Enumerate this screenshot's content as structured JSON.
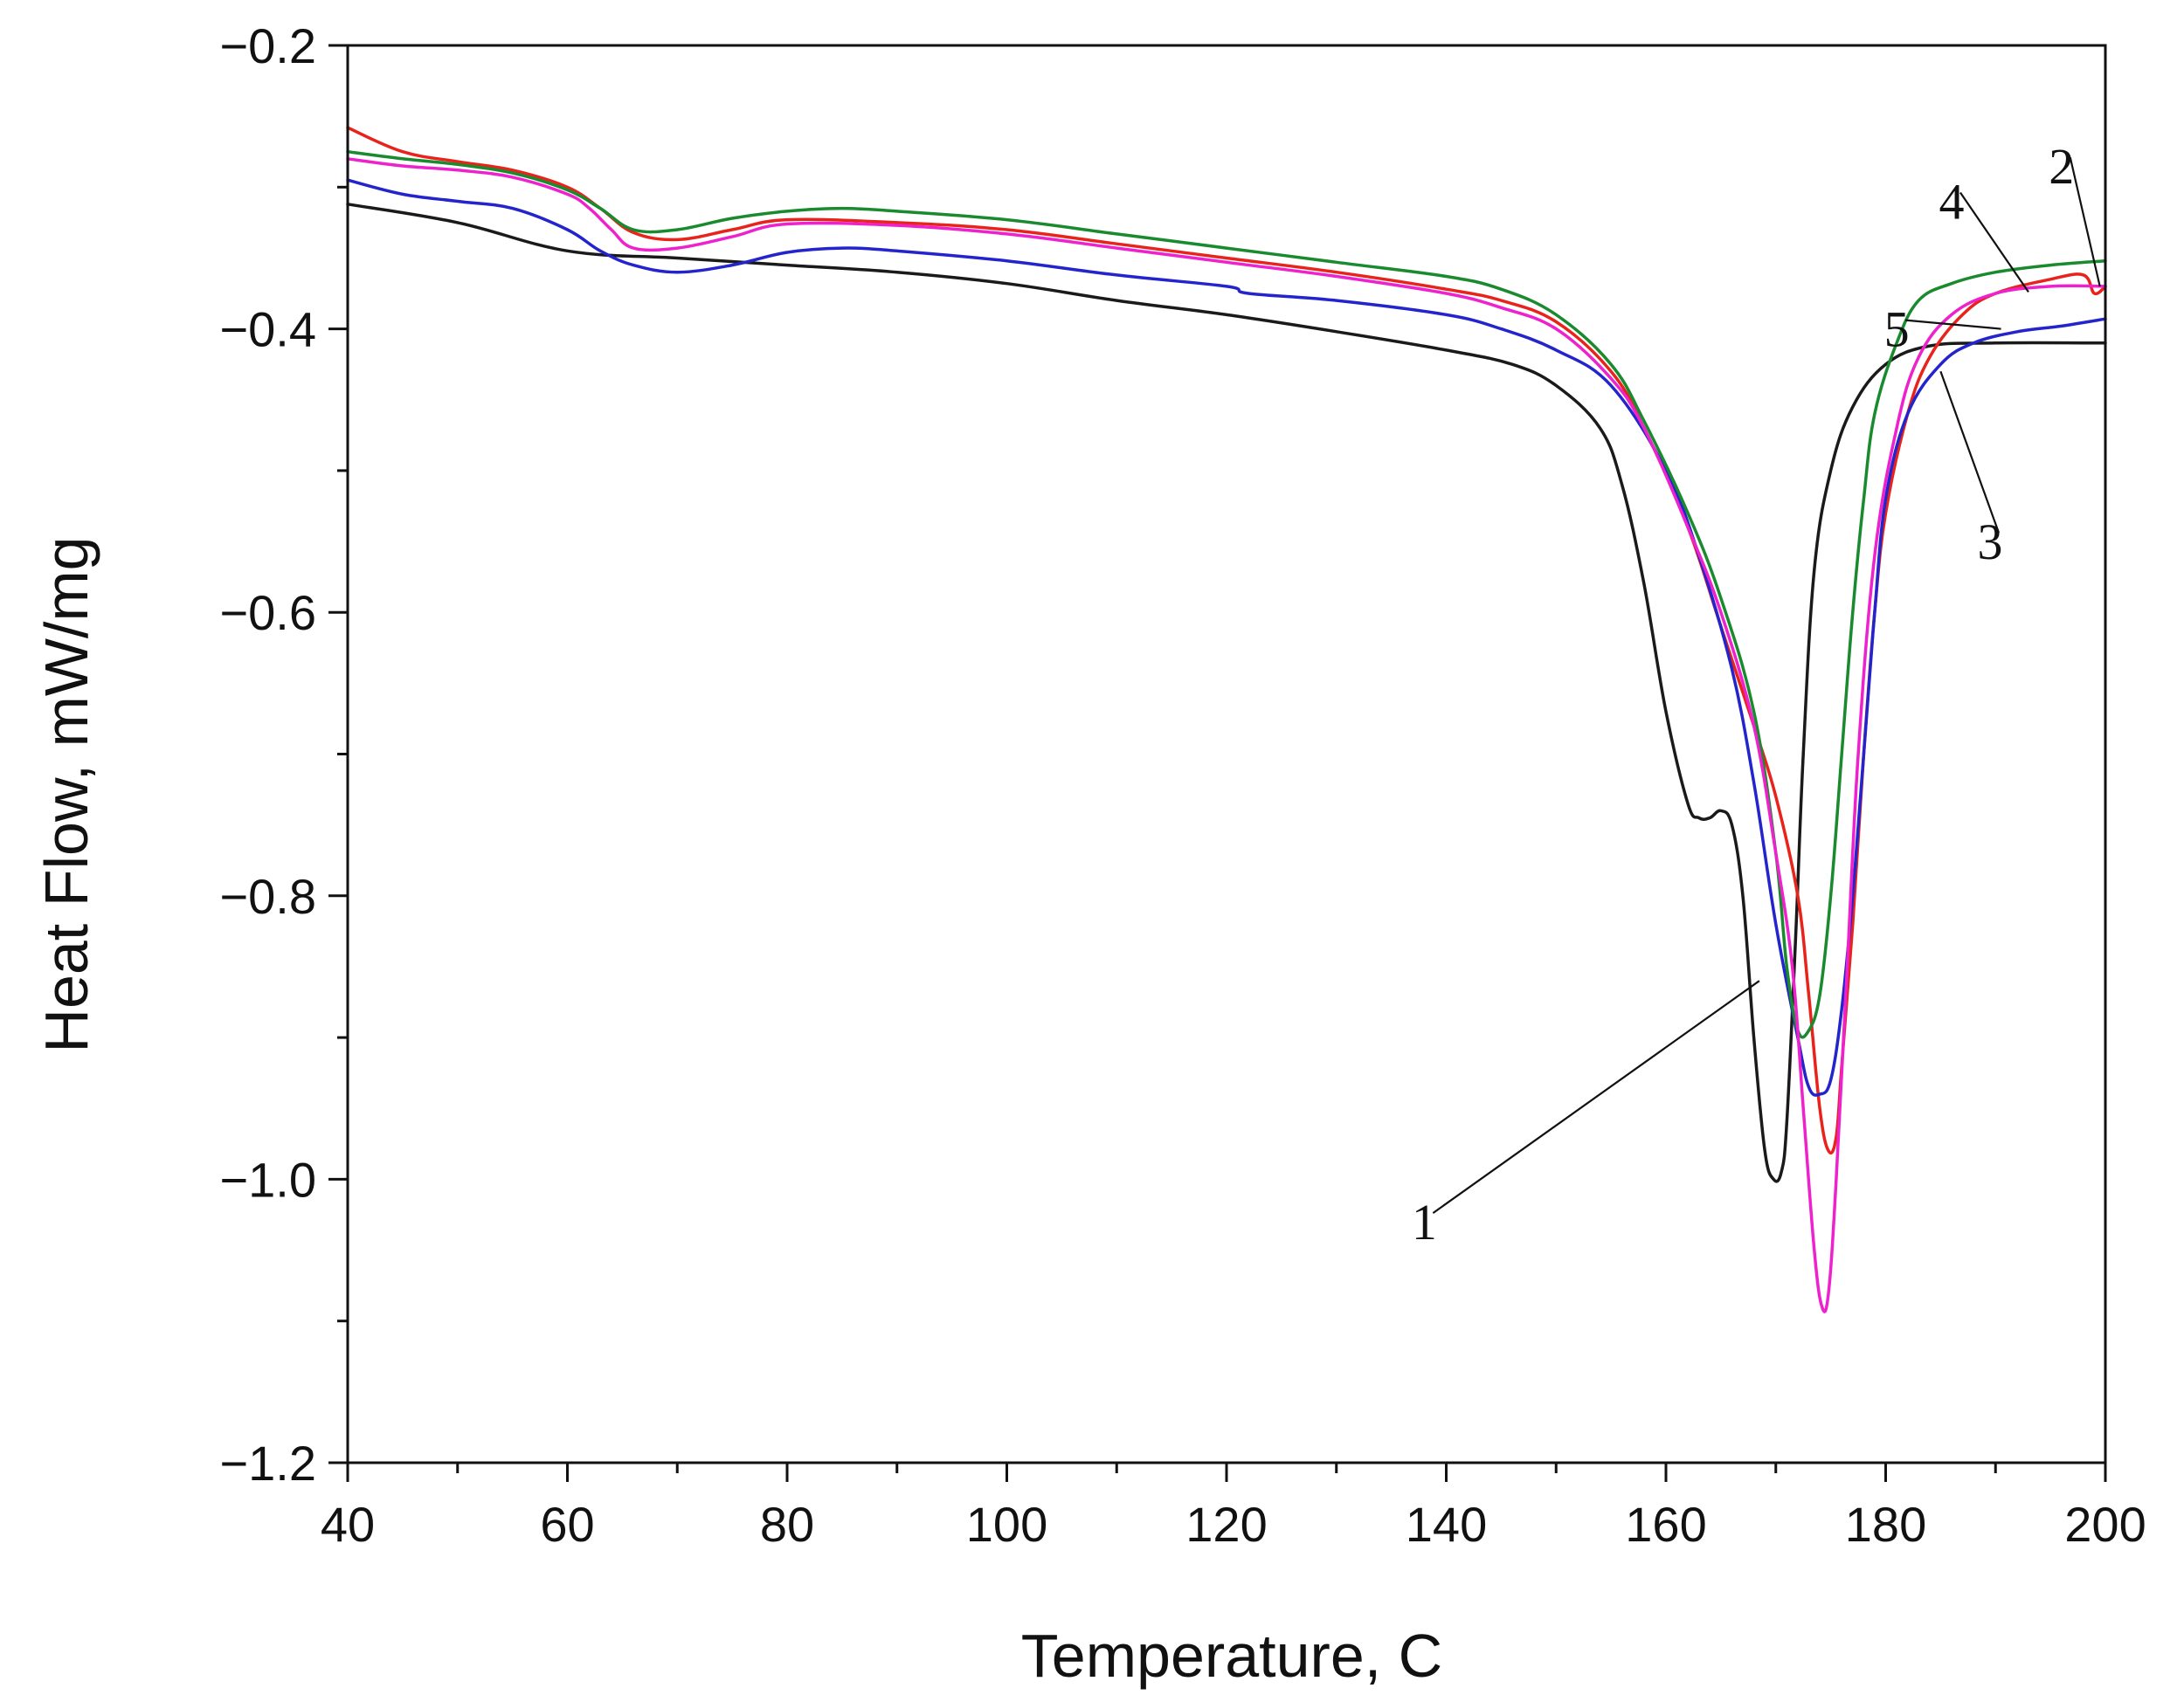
{
  "chart_data": {
    "type": "line",
    "title": "",
    "xlabel": "Temperature, C",
    "ylabel": "Heat Flow, mW/mg",
    "xlim": [
      40,
      200
    ],
    "ylim": [
      -1.2,
      -0.2
    ],
    "xticks": [
      40,
      60,
      80,
      100,
      120,
      140,
      160,
      180,
      200
    ],
    "yticks": [
      -1.2,
      -1.0,
      -0.8,
      -0.6,
      -0.4,
      -0.2
    ],
    "xtick_labels": [
      "40",
      "60",
      "80",
      "100",
      "120",
      "140",
      "160",
      "180",
      "200"
    ],
    "ytick_labels": [
      "−1.2",
      "−1.0",
      "−0.8",
      "−0.6",
      "−0.4",
      "−0.2"
    ],
    "grid": false,
    "series": [
      {
        "name": "1",
        "color": "#1a1a1a",
        "points": [
          [
            40,
            -0.312
          ],
          [
            50,
            -0.325
          ],
          [
            60,
            -0.345
          ],
          [
            70,
            -0.35
          ],
          [
            80,
            -0.355
          ],
          [
            90,
            -0.36
          ],
          [
            100,
            -0.368
          ],
          [
            110,
            -0.38
          ],
          [
            120,
            -0.39
          ],
          [
            130,
            -0.402
          ],
          [
            140,
            -0.415
          ],
          [
            146,
            -0.425
          ],
          [
            150,
            -0.44
          ],
          [
            154,
            -0.47
          ],
          [
            156,
            -0.51
          ],
          [
            158,
            -0.58
          ],
          [
            160,
            -0.67
          ],
          [
            162,
            -0.735
          ],
          [
            163,
            -0.745
          ],
          [
            164,
            -0.745
          ],
          [
            165,
            -0.74
          ],
          [
            166,
            -0.75
          ],
          [
            167,
            -0.8
          ],
          [
            168,
            -0.9
          ],
          [
            169,
            -0.98
          ],
          [
            169.8,
            -1.0
          ],
          [
            170.5,
            -0.995
          ],
          [
            171,
            -0.96
          ],
          [
            171.8,
            -0.83
          ],
          [
            172.5,
            -0.7
          ],
          [
            173.5,
            -0.57
          ],
          [
            175,
            -0.5
          ],
          [
            177,
            -0.455
          ],
          [
            180,
            -0.425
          ],
          [
            184,
            -0.412
          ],
          [
            190,
            -0.41
          ],
          [
            200,
            -0.41
          ]
        ]
      },
      {
        "name": "2",
        "color": "#e8231c",
        "points": [
          [
            40,
            -0.258
          ],
          [
            45,
            -0.275
          ],
          [
            50,
            -0.282
          ],
          [
            55,
            -0.288
          ],
          [
            60,
            -0.3
          ],
          [
            63,
            -0.315
          ],
          [
            66,
            -0.332
          ],
          [
            70,
            -0.337
          ],
          [
            75,
            -0.33
          ],
          [
            80,
            -0.323
          ],
          [
            90,
            -0.325
          ],
          [
            100,
            -0.33
          ],
          [
            110,
            -0.34
          ],
          [
            120,
            -0.35
          ],
          [
            130,
            -0.36
          ],
          [
            140,
            -0.372
          ],
          [
            145,
            -0.38
          ],
          [
            150,
            -0.395
          ],
          [
            155,
            -0.43
          ],
          [
            158,
            -0.47
          ],
          [
            162,
            -0.54
          ],
          [
            165,
            -0.61
          ],
          [
            168,
            -0.68
          ],
          [
            170,
            -0.73
          ],
          [
            172,
            -0.8
          ],
          [
            173,
            -0.87
          ],
          [
            174,
            -0.95
          ],
          [
            174.8,
            -0.98
          ],
          [
            175.5,
            -0.97
          ],
          [
            176,
            -0.92
          ],
          [
            177,
            -0.82
          ],
          [
            178,
            -0.7
          ],
          [
            179,
            -0.6
          ],
          [
            180,
            -0.53
          ],
          [
            182,
            -0.46
          ],
          [
            184,
            -0.42
          ],
          [
            187,
            -0.39
          ],
          [
            190,
            -0.375
          ],
          [
            195,
            -0.365
          ],
          [
            198,
            -0.362
          ],
          [
            199,
            -0.375
          ],
          [
            200,
            -0.37
          ]
        ]
      },
      {
        "name": "3",
        "color": "#2424cc",
        "points": [
          [
            40,
            -0.295
          ],
          [
            45,
            -0.305
          ],
          [
            50,
            -0.31
          ],
          [
            55,
            -0.315
          ],
          [
            60,
            -0.33
          ],
          [
            63,
            -0.345
          ],
          [
            66,
            -0.355
          ],
          [
            70,
            -0.36
          ],
          [
            75,
            -0.355
          ],
          [
            80,
            -0.346
          ],
          [
            85,
            -0.343
          ],
          [
            90,
            -0.345
          ],
          [
            100,
            -0.352
          ],
          [
            110,
            -0.362
          ],
          [
            120,
            -0.37
          ],
          [
            122,
            -0.375
          ],
          [
            130,
            -0.38
          ],
          [
            140,
            -0.39
          ],
          [
            145,
            -0.4
          ],
          [
            150,
            -0.415
          ],
          [
            155,
            -0.44
          ],
          [
            160,
            -0.5
          ],
          [
            163,
            -0.56
          ],
          [
            166,
            -0.64
          ],
          [
            168,
            -0.72
          ],
          [
            170,
            -0.82
          ],
          [
            172,
            -0.9
          ],
          [
            173,
            -0.935
          ],
          [
            174,
            -0.94
          ],
          [
            175,
            -0.93
          ],
          [
            176,
            -0.88
          ],
          [
            177,
            -0.8
          ],
          [
            178,
            -0.7
          ],
          [
            179,
            -0.6
          ],
          [
            180,
            -0.52
          ],
          [
            182,
            -0.46
          ],
          [
            185,
            -0.425
          ],
          [
            188,
            -0.41
          ],
          [
            192,
            -0.402
          ],
          [
            196,
            -0.398
          ],
          [
            200,
            -0.393
          ]
        ]
      },
      {
        "name": "4",
        "color": "#1a8a2e",
        "points": [
          [
            40,
            -0.275
          ],
          [
            45,
            -0.28
          ],
          [
            50,
            -0.284
          ],
          [
            55,
            -0.29
          ],
          [
            60,
            -0.302
          ],
          [
            63,
            -0.315
          ],
          [
            66,
            -0.33
          ],
          [
            70,
            -0.33
          ],
          [
            75,
            -0.322
          ],
          [
            80,
            -0.317
          ],
          [
            85,
            -0.315
          ],
          [
            90,
            -0.317
          ],
          [
            100,
            -0.323
          ],
          [
            110,
            -0.333
          ],
          [
            120,
            -0.343
          ],
          [
            130,
            -0.353
          ],
          [
            140,
            -0.363
          ],
          [
            145,
            -0.372
          ],
          [
            150,
            -0.39
          ],
          [
            155,
            -0.425
          ],
          [
            158,
            -0.465
          ],
          [
            162,
            -0.53
          ],
          [
            165,
            -0.59
          ],
          [
            168,
            -0.67
          ],
          [
            170,
            -0.77
          ],
          [
            171,
            -0.85
          ],
          [
            172,
            -0.895
          ],
          [
            173,
            -0.895
          ],
          [
            174,
            -0.87
          ],
          [
            175,
            -0.8
          ],
          [
            176,
            -0.7
          ],
          [
            177,
            -0.6
          ],
          [
            178,
            -0.52
          ],
          [
            179,
            -0.46
          ],
          [
            181,
            -0.41
          ],
          [
            183,
            -0.38
          ],
          [
            186,
            -0.368
          ],
          [
            190,
            -0.36
          ],
          [
            195,
            -0.355
          ],
          [
            200,
            -0.352
          ]
        ]
      },
      {
        "name": "5",
        "color": "#ee22cc",
        "points": [
          [
            40,
            -0.28
          ],
          [
            45,
            -0.285
          ],
          [
            50,
            -0.288
          ],
          [
            55,
            -0.293
          ],
          [
            60,
            -0.305
          ],
          [
            62,
            -0.315
          ],
          [
            64,
            -0.33
          ],
          [
            66,
            -0.343
          ],
          [
            70,
            -0.343
          ],
          [
            75,
            -0.335
          ],
          [
            80,
            -0.326
          ],
          [
            90,
            -0.327
          ],
          [
            100,
            -0.333
          ],
          [
            110,
            -0.343
          ],
          [
            120,
            -0.353
          ],
          [
            130,
            -0.363
          ],
          [
            140,
            -0.375
          ],
          [
            145,
            -0.385
          ],
          [
            150,
            -0.4
          ],
          [
            155,
            -0.435
          ],
          [
            158,
            -0.47
          ],
          [
            162,
            -0.54
          ],
          [
            165,
            -0.6
          ],
          [
            168,
            -0.68
          ],
          [
            170,
            -0.77
          ],
          [
            171.5,
            -0.85
          ],
          [
            172.5,
            -0.95
          ],
          [
            173.5,
            -1.05
          ],
          [
            174.2,
            -1.09
          ],
          [
            174.8,
            -1.08
          ],
          [
            175.5,
            -1.0
          ],
          [
            176.5,
            -0.85
          ],
          [
            177.5,
            -0.7
          ],
          [
            179,
            -0.56
          ],
          [
            181,
            -0.47
          ],
          [
            183,
            -0.42
          ],
          [
            186,
            -0.39
          ],
          [
            190,
            -0.375
          ],
          [
            195,
            -0.37
          ],
          [
            200,
            -0.37
          ]
        ]
      }
    ],
    "annotations": [
      {
        "label": "1",
        "text_at": [
          138,
          -1.03
        ],
        "point_at": [
          168.5,
          -0.86
        ]
      },
      {
        "label": "2",
        "text_at": [
          196,
          -0.285
        ],
        "point_at": [
          199.5,
          -0.37
        ]
      },
      {
        "label": "3",
        "text_at": [
          189.5,
          -0.55
        ],
        "point_at": [
          185,
          -0.43
        ]
      },
      {
        "label": "4",
        "text_at": [
          186,
          -0.31
        ],
        "point_at": [
          193,
          -0.374
        ]
      },
      {
        "label": "5",
        "text_at": [
          181,
          -0.4
        ],
        "point_at": [
          190.5,
          -0.4
        ]
      }
    ]
  }
}
